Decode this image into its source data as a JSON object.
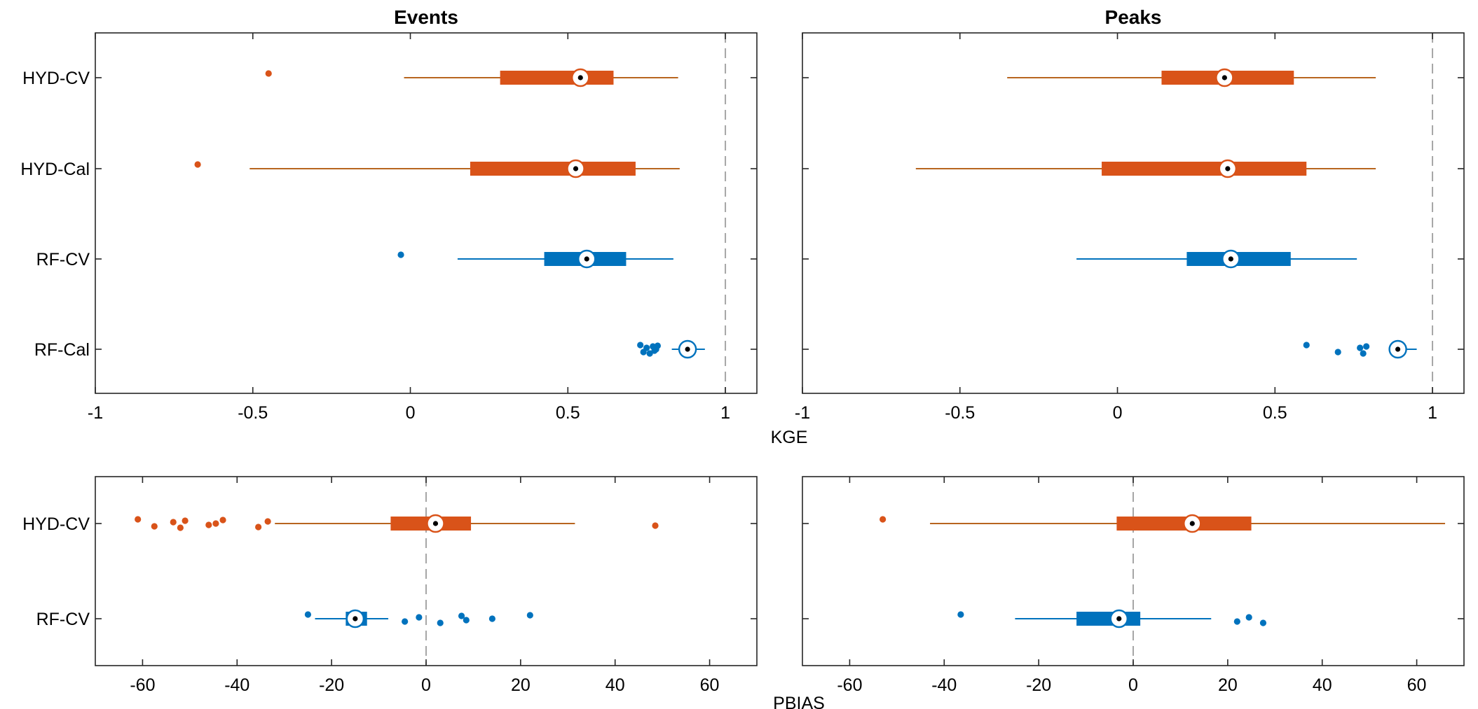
{
  "colors": {
    "hyd": "#D95319",
    "rf": "#0072BD",
    "hyd_whisker": "#B8651F",
    "ref_line": "#A6A6A6"
  },
  "shared_labels": {
    "kge": "KGE",
    "pbias": "PBIAS"
  },
  "chart_data": [
    {
      "id": "kge-events",
      "type": "boxplot",
      "orientation": "horizontal",
      "title": "Events",
      "xlim": [
        -1,
        1.1
      ],
      "xticks": [
        -1,
        -0.5,
        0,
        0.5,
        1
      ],
      "xtick_labels": [
        "-1",
        "-0.5",
        "0",
        "0.5",
        "1"
      ],
      "reference_line": 1,
      "categories": [
        "HYD-CV",
        "HYD-Cal",
        "RF-CV",
        "RF-Cal"
      ],
      "boxes": [
        {
          "name": "HYD-CV",
          "group": "hyd",
          "whisker_low": -0.02,
          "q1": 0.285,
          "median": 0.54,
          "q3": 0.645,
          "whisker_high": 0.85,
          "outliers": [
            -0.45
          ]
        },
        {
          "name": "HYD-Cal",
          "group": "hyd",
          "whisker_low": -0.51,
          "q1": 0.19,
          "median": 0.525,
          "q3": 0.715,
          "whisker_high": 0.855,
          "outliers": [
            -0.675
          ]
        },
        {
          "name": "RF-CV",
          "group": "rf",
          "whisker_low": 0.15,
          "q1": 0.425,
          "median": 0.56,
          "q3": 0.685,
          "whisker_high": 0.835,
          "outliers": [
            -0.03
          ]
        },
        {
          "name": "RF-Cal",
          "group": "rf",
          "whisker_low": 0.83,
          "q1": 0.872,
          "median": 0.88,
          "q3": 0.888,
          "whisker_high": 0.935,
          "outliers": [
            0.73,
            0.74,
            0.75,
            0.76,
            0.77,
            0.775,
            0.78,
            0.785
          ]
        }
      ]
    },
    {
      "id": "kge-peaks",
      "type": "boxplot",
      "orientation": "horizontal",
      "title": "Peaks",
      "xlim": [
        -1,
        1.1
      ],
      "xticks": [
        -1,
        -0.5,
        0,
        0.5,
        1
      ],
      "xtick_labels": [
        "-1",
        "-0.5",
        "0",
        "0.5",
        "1"
      ],
      "reference_line": 1,
      "categories": [
        "HYD-CV",
        "HYD-Cal",
        "RF-CV",
        "RF-Cal"
      ],
      "boxes": [
        {
          "name": "HYD-CV",
          "group": "hyd",
          "whisker_low": -0.35,
          "q1": 0.14,
          "median": 0.34,
          "q3": 0.56,
          "whisker_high": 0.82,
          "outliers": []
        },
        {
          "name": "HYD-Cal",
          "group": "hyd",
          "whisker_low": -0.64,
          "q1": -0.05,
          "median": 0.35,
          "q3": 0.6,
          "whisker_high": 0.82,
          "outliers": []
        },
        {
          "name": "RF-CV",
          "group": "rf",
          "whisker_low": -0.13,
          "q1": 0.22,
          "median": 0.36,
          "q3": 0.55,
          "whisker_high": 0.76,
          "outliers": []
        },
        {
          "name": "RF-Cal",
          "group": "rf",
          "whisker_low": 0.865,
          "q1": 0.882,
          "median": 0.89,
          "q3": 0.898,
          "whisker_high": 0.95,
          "outliers": [
            0.6,
            0.7,
            0.77,
            0.78,
            0.79
          ]
        }
      ]
    },
    {
      "id": "pbias-events",
      "type": "boxplot",
      "orientation": "horizontal",
      "title": "",
      "xlim": [
        -70,
        70
      ],
      "xticks": [
        -60,
        -40,
        -20,
        0,
        20,
        40,
        60
      ],
      "xtick_labels": [
        "-60",
        "-40",
        "-20",
        "0",
        "20",
        "40",
        "60"
      ],
      "reference_line": 0,
      "categories": [
        "HYD-CV",
        "RF-CV"
      ],
      "boxes": [
        {
          "name": "HYD-CV",
          "group": "hyd",
          "whisker_low": -32,
          "q1": -7.5,
          "median": 2,
          "q3": 9.5,
          "whisker_high": 31.5,
          "outliers": [
            -61,
            -57.5,
            -53.5,
            -52,
            -51,
            -46,
            -44.5,
            -43,
            -35.5,
            -33.5,
            48.5
          ]
        },
        {
          "name": "RF-CV",
          "group": "rf",
          "whisker_low": -23.5,
          "q1": -17,
          "median": -15,
          "q3": -12.5,
          "whisker_high": -8,
          "outliers": [
            -25,
            -4.5,
            -1.5,
            3,
            7.5,
            8.5,
            14,
            22
          ]
        }
      ]
    },
    {
      "id": "pbias-peaks",
      "type": "boxplot",
      "orientation": "horizontal",
      "title": "",
      "xlim": [
        -70,
        70
      ],
      "xticks": [
        -60,
        -40,
        -20,
        0,
        20,
        40,
        60
      ],
      "xtick_labels": [
        "-60",
        "-40",
        "-20",
        "0",
        "20",
        "40",
        "60"
      ],
      "reference_line": 0,
      "categories": [
        "HYD-CV",
        "RF-CV"
      ],
      "boxes": [
        {
          "name": "HYD-CV",
          "group": "hyd",
          "whisker_low": -43,
          "q1": -3.5,
          "median": 12.5,
          "q3": 25,
          "whisker_high": 66,
          "outliers": [
            -53
          ]
        },
        {
          "name": "RF-CV",
          "group": "rf",
          "whisker_low": -25,
          "q1": -12,
          "median": -3,
          "q3": 1.5,
          "whisker_high": 16.5,
          "outliers": [
            -36.5,
            22,
            24.5,
            27.5
          ]
        }
      ]
    }
  ]
}
